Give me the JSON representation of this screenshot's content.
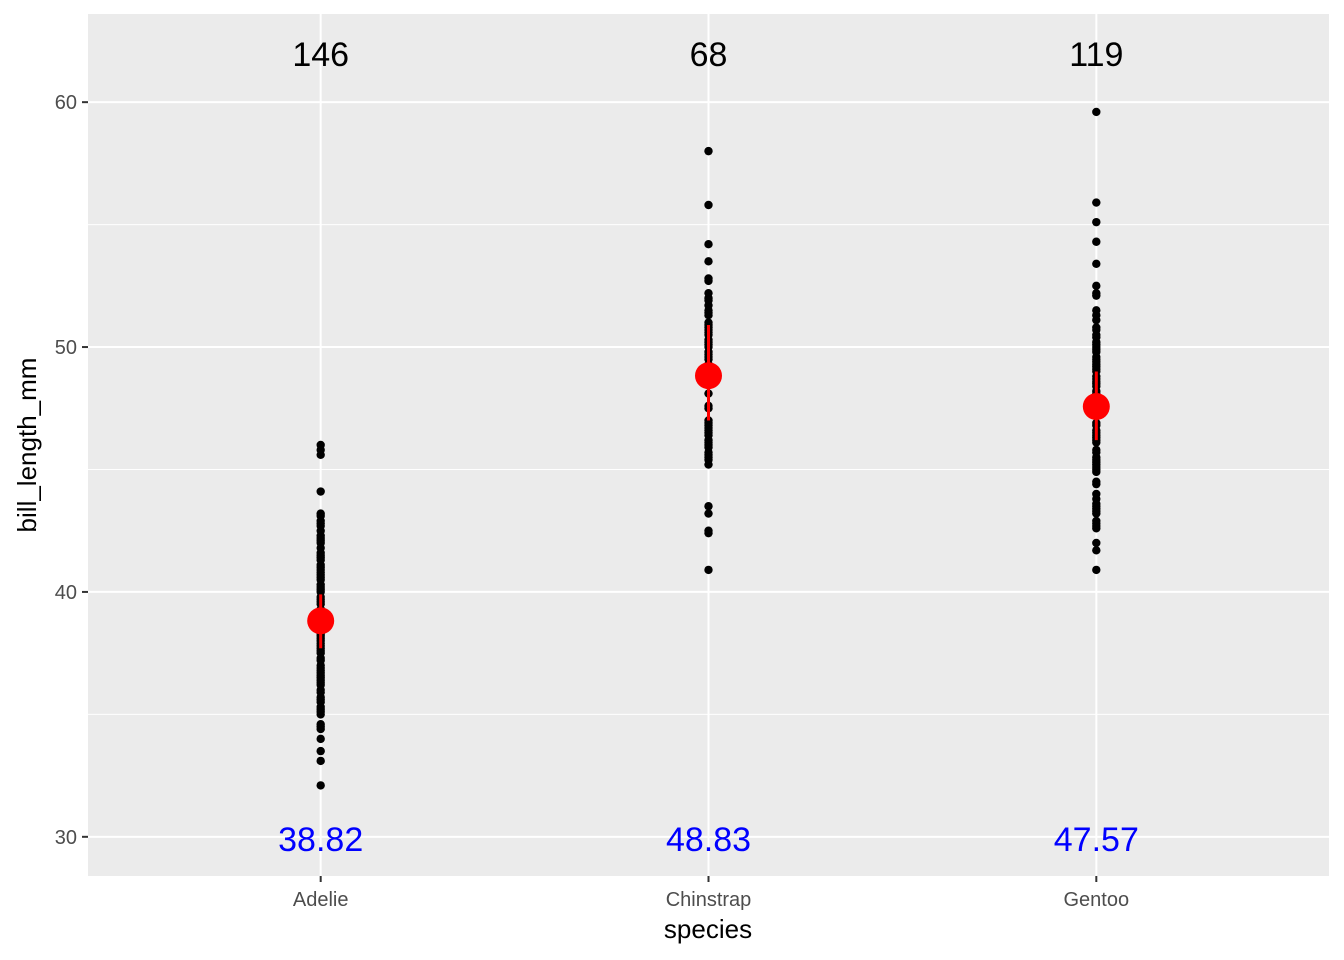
{
  "chart_data": {
    "type": "scatter",
    "xlabel": "species",
    "ylabel": "bill_length_mm",
    "ylim": [
      28.4,
      63.6
    ],
    "y_ticks": [
      {
        "value": 30,
        "label": "30"
      },
      {
        "value": 40,
        "label": "40"
      },
      {
        "value": 50,
        "label": "50"
      },
      {
        "value": 60,
        "label": "60"
      }
    ],
    "y_minor_ticks": [
      35,
      45,
      55
    ],
    "grid": true,
    "legend": "none",
    "colors": {
      "panel": "#ebebeb",
      "grid": "#ffffff",
      "points": "#000000",
      "summary": "#ff0000",
      "mean_label": "#0000ff"
    },
    "categories": [
      "Adelie",
      "Chinstrap",
      "Gentoo"
    ],
    "groups": [
      {
        "category": "Adelie",
        "count": 146,
        "count_label": "146",
        "mean": 38.82,
        "mean_label": "38.82",
        "ci": [
          37.7,
          39.9
        ],
        "values": [
          32.1,
          33.1,
          33.5,
          34.0,
          34.4,
          34.5,
          34.6,
          35.0,
          35.1,
          35.2,
          35.3,
          35.5,
          35.6,
          35.7,
          35.9,
          36.0,
          36.2,
          36.3,
          36.4,
          36.5,
          36.6,
          36.7,
          36.8,
          36.9,
          37.0,
          37.2,
          37.3,
          37.5,
          37.6,
          37.7,
          37.8,
          37.9,
          38.0,
          38.1,
          38.2,
          38.3,
          38.5,
          38.6,
          38.7,
          38.8,
          38.9,
          39.0,
          39.1,
          39.2,
          39.3,
          39.5,
          39.6,
          39.7,
          39.8,
          40.0,
          40.1,
          40.2,
          40.3,
          40.5,
          40.6,
          40.7,
          40.8,
          40.9,
          41.0,
          41.1,
          41.3,
          41.4,
          41.5,
          41.6,
          41.8,
          42.0,
          42.1,
          42.2,
          42.3,
          42.5,
          42.7,
          42.8,
          42.9,
          43.1,
          43.2,
          44.1,
          45.6,
          45.8,
          46.0
        ]
      },
      {
        "category": "Chinstrap",
        "count": 68,
        "count_label": "68",
        "mean": 48.83,
        "mean_label": "48.83",
        "ci": [
          47.0,
          50.9
        ],
        "values": [
          40.9,
          42.4,
          42.5,
          43.2,
          43.5,
          45.2,
          45.4,
          45.5,
          45.6,
          45.7,
          45.9,
          46.0,
          46.1,
          46.2,
          46.4,
          46.5,
          46.6,
          46.7,
          46.8,
          46.9,
          47.0,
          47.5,
          47.6,
          48.1,
          48.5,
          49.0,
          49.2,
          49.3,
          49.5,
          49.6,
          49.7,
          49.8,
          50.0,
          50.1,
          50.2,
          50.3,
          50.5,
          50.6,
          50.7,
          50.8,
          50.9,
          51.0,
          51.3,
          51.4,
          51.5,
          51.7,
          51.9,
          52.0,
          52.2,
          52.7,
          52.8,
          53.5,
          54.2,
          55.8,
          58.0
        ]
      },
      {
        "category": "Gentoo",
        "count": 119,
        "count_label": "119",
        "mean": 47.57,
        "mean_label": "47.57",
        "ci": [
          46.2,
          49.0
        ],
        "values": [
          40.9,
          41.7,
          42.0,
          42.6,
          42.7,
          42.8,
          42.9,
          43.2,
          43.3,
          43.4,
          43.5,
          43.6,
          43.8,
          44.0,
          44.4,
          44.5,
          44.9,
          45.0,
          45.1,
          45.2,
          45.3,
          45.4,
          45.5,
          45.7,
          45.8,
          46.1,
          46.2,
          46.3,
          46.4,
          46.5,
          46.6,
          46.8,
          46.9,
          47.2,
          47.3,
          47.4,
          47.5,
          47.6,
          47.7,
          47.8,
          48.1,
          48.2,
          48.4,
          48.5,
          48.6,
          48.7,
          48.8,
          49.0,
          49.1,
          49.2,
          49.3,
          49.4,
          49.5,
          49.6,
          49.8,
          49.9,
          50.0,
          50.1,
          50.2,
          50.4,
          50.5,
          50.7,
          50.8,
          51.1,
          51.3,
          51.5,
          52.1,
          52.2,
          52.5,
          53.4,
          54.3,
          55.1,
          55.9,
          59.6
        ]
      }
    ]
  }
}
